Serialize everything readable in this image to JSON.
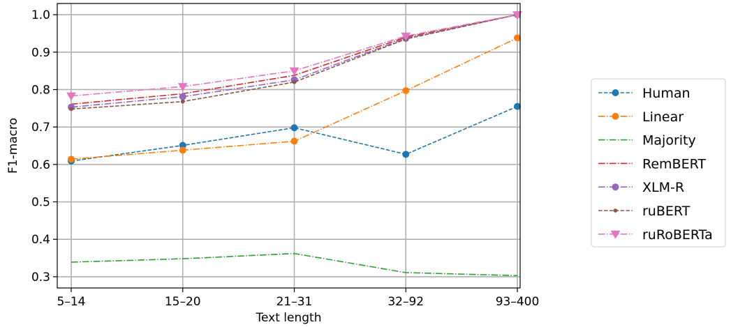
{
  "chart_data": {
    "type": "line",
    "xlabel": "Text length",
    "ylabel": "F1-macro",
    "categories": [
      "5–14",
      "15–20",
      "21–31",
      "32–92",
      "93–400"
    ],
    "ylim": [
      0.27,
      1.03
    ],
    "yticks": [
      0.3,
      0.4,
      0.5,
      0.6,
      0.7,
      0.8,
      0.9,
      1.0
    ],
    "ytick_labels": [
      "0.3",
      "0.4",
      "0.5",
      "0.6",
      "0.7",
      "0.8",
      "0.9",
      "1.0"
    ],
    "grid": true,
    "legend_position": "right",
    "series": [
      {
        "name": "Human",
        "color": "#1f77b4",
        "dash": "dashed",
        "marker": "circle",
        "values": [
          0.609,
          0.651,
          0.698,
          0.627,
          0.755
        ]
      },
      {
        "name": "Linear",
        "color": "#ff7f0e",
        "dash": "dashdot",
        "marker": "circle",
        "values": [
          0.614,
          0.638,
          0.662,
          0.797,
          0.938
        ]
      },
      {
        "name": "Majority",
        "color": "#2ca02c",
        "dash": "dashdot",
        "marker": "none",
        "values": [
          0.339,
          0.348,
          0.362,
          0.311,
          0.303
        ]
      },
      {
        "name": "RemBERT",
        "color": "#d62728",
        "dash": "dashdot",
        "marker": "none",
        "values": [
          0.761,
          0.789,
          0.838,
          0.94,
          1.0
        ]
      },
      {
        "name": "XLM-R",
        "color": "#9467bd",
        "dash": "dashdot",
        "marker": "circle",
        "values": [
          0.753,
          0.781,
          0.826,
          0.937,
          1.0
        ]
      },
      {
        "name": "ruBERT",
        "color": "#8c564b",
        "dash": "dashed",
        "marker": "small-dot",
        "values": [
          0.748,
          0.768,
          0.82,
          0.935,
          1.0
        ]
      },
      {
        "name": "ruRoBERTa",
        "color": "#e377c2",
        "dash": "dashdot",
        "marker": "triangle-down",
        "values": [
          0.783,
          0.808,
          0.85,
          0.943,
          1.0
        ]
      }
    ]
  }
}
